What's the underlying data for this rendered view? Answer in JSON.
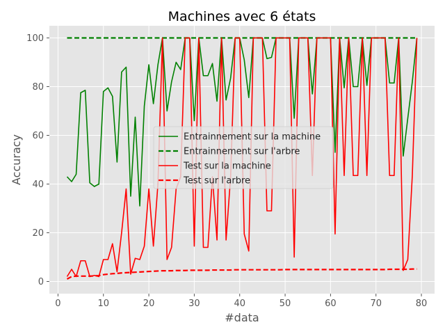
{
  "chart_data": {
    "type": "line",
    "title": "Machines avec 6 états",
    "xlabel": "#data",
    "ylabel": "Accuracy",
    "xlim": [
      -1.9,
      82.9
    ],
    "ylim": [
      -5,
      105
    ],
    "xticks": [
      0,
      10,
      20,
      30,
      40,
      50,
      60,
      70,
      80
    ],
    "yticks": [
      0,
      20,
      40,
      60,
      80,
      100
    ],
    "grid": true,
    "legend_position": "center",
    "x": [
      2,
      3,
      4,
      5,
      6,
      7,
      8,
      9,
      10,
      11,
      12,
      13,
      14,
      15,
      16,
      17,
      18,
      19,
      20,
      21,
      22,
      23,
      24,
      25,
      26,
      27,
      28,
      29,
      30,
      31,
      32,
      33,
      34,
      35,
      36,
      37,
      38,
      39,
      40,
      41,
      42,
      43,
      44,
      45,
      46,
      47,
      48,
      49,
      50,
      51,
      52,
      53,
      54,
      55,
      56,
      57,
      58,
      59,
      60,
      61,
      62,
      63,
      64,
      65,
      66,
      67,
      68,
      69,
      70,
      71,
      72,
      73,
      74,
      75,
      76,
      77,
      78,
      79
    ],
    "series": [
      {
        "name": "Entrainnement sur la machine",
        "color": "#008000",
        "style": "solid",
        "values": [
          43,
          41,
          44,
          77.5,
          78.5,
          40.5,
          39,
          40,
          78,
          79.5,
          76,
          49,
          86,
          88,
          35,
          67.5,
          31,
          72,
          89,
          73,
          89,
          100,
          70,
          82,
          90,
          87,
          100,
          100,
          66,
          100,
          84.5,
          84.5,
          89.5,
          74,
          100,
          74.5,
          83.5,
          100,
          100,
          91,
          75.5,
          100,
          100,
          100,
          91.5,
          92,
          100,
          100,
          100,
          100,
          67,
          100,
          100,
          100,
          77,
          100,
          100,
          100,
          100,
          53,
          100,
          79.5,
          100,
          80,
          80,
          100,
          80.5,
          100,
          100,
          100,
          100,
          81.5,
          81.5,
          100,
          51.5,
          67,
          82,
          100
        ]
      },
      {
        "name": "Entrainnement sur l'arbre",
        "color": "#008000",
        "style": "dashed",
        "values": [
          100,
          100,
          100,
          100,
          100,
          100,
          100,
          100,
          100,
          100,
          100,
          100,
          100,
          100,
          100,
          100,
          100,
          100,
          100,
          100,
          100,
          100,
          100,
          100,
          100,
          100,
          100,
          100,
          100,
          100,
          100,
          100,
          100,
          100,
          100,
          100,
          100,
          100,
          100,
          100,
          100,
          100,
          100,
          100,
          100,
          100,
          100,
          100,
          100,
          100,
          100,
          100,
          100,
          100,
          100,
          100,
          100,
          100,
          100,
          100,
          100,
          100,
          100,
          100,
          100,
          100,
          100,
          100,
          100,
          100,
          100,
          100,
          100,
          100,
          100,
          100,
          100,
          100
        ]
      },
      {
        "name": "Test sur la machine",
        "color": "#ff0000",
        "style": "solid",
        "values": [
          2,
          5,
          2,
          8.5,
          8.5,
          2,
          2.5,
          2,
          9,
          9,
          15.5,
          4,
          20,
          38,
          3,
          9.5,
          9,
          14.5,
          38,
          14.5,
          40,
          100,
          9,
          14,
          38,
          43,
          100,
          100,
          14.5,
          100,
          14,
          14,
          43,
          17,
          100,
          17,
          43,
          100,
          100,
          19.5,
          12.5,
          100,
          100,
          100,
          29,
          29,
          100,
          100,
          100,
          100,
          10,
          100,
          100,
          100,
          43.5,
          100,
          100,
          100,
          100,
          19.5,
          100,
          43.5,
          100,
          43.5,
          43.5,
          100,
          43.5,
          100,
          100,
          100,
          100,
          43.5,
          43.5,
          100,
          4.5,
          9,
          43.5,
          100
        ]
      },
      {
        "name": "Test sur l'arbre",
        "color": "#ff0000",
        "style": "dashed",
        "values": [
          1,
          2,
          2.2,
          2.2,
          2.2,
          2.2,
          2.3,
          2.4,
          2.8,
          3,
          3.2,
          3.3,
          3.5,
          3.6,
          3.7,
          3.8,
          3.9,
          4,
          4.1,
          4.2,
          4.3,
          4.4,
          4.4,
          4.4,
          4.5,
          4.5,
          4.5,
          4.6,
          4.6,
          4.6,
          4.6,
          4.6,
          4.7,
          4.7,
          4.7,
          4.7,
          4.7,
          4.8,
          4.8,
          4.8,
          4.8,
          4.8,
          4.8,
          4.8,
          4.8,
          4.8,
          4.8,
          4.8,
          4.9,
          4.9,
          4.9,
          4.9,
          4.9,
          4.9,
          4.9,
          4.9,
          4.9,
          4.9,
          4.9,
          4.9,
          4.9,
          4.9,
          4.9,
          4.9,
          4.9,
          4.9,
          4.9,
          4.9,
          4.9,
          4.9,
          4.9,
          5,
          5,
          5,
          5,
          5,
          5.1,
          5.1
        ]
      }
    ]
  }
}
